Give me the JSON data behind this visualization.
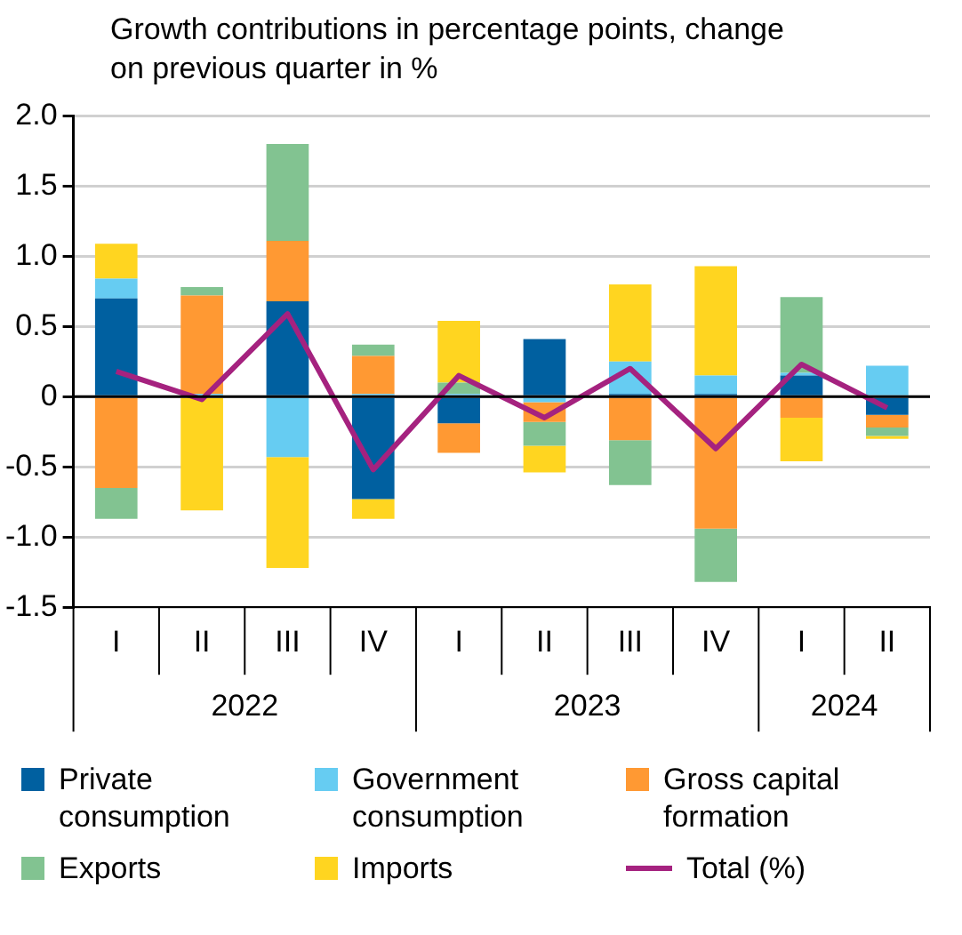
{
  "chart_data": {
    "type": "bar",
    "title": "Growth contributions in percentage points, change on previous quarter in %",
    "stacked": true,
    "categories": [
      "I",
      "II",
      "III",
      "IV",
      "I",
      "II",
      "III",
      "IV",
      "I",
      "II"
    ],
    "series": [
      {
        "name": "Private consumption",
        "color": "#0060a0",
        "values": [
          0.7,
          null,
          0.68,
          -0.73,
          -0.19,
          0.41,
          0.02,
          0.02,
          0.15,
          -0.13
        ]
      },
      {
        "name": "Government consumption",
        "color": "#66ccf2",
        "values": [
          0.14,
          0.02,
          -0.43,
          0.02,
          0.02,
          -0.04,
          0.23,
          0.13,
          0.02,
          0.22
        ]
      },
      {
        "name": "Gross capital formation",
        "color": "#ff9933",
        "values": [
          -0.65,
          0.7,
          0.43,
          0.27,
          -0.21,
          -0.14,
          -0.31,
          -0.94,
          -0.15,
          -0.09
        ]
      },
      {
        "name": "Exports",
        "color": "#82c391",
        "values": [
          -0.22,
          0.06,
          0.69,
          0.08,
          0.08,
          -0.17,
          -0.32,
          -0.38,
          0.54,
          -0.06
        ]
      },
      {
        "name": "Imports",
        "color": "#ffd520",
        "values": [
          0.25,
          -0.81,
          -0.79,
          -0.14,
          0.44,
          -0.19,
          0.55,
          0.78,
          -0.31,
          -0.02
        ]
      },
      {
        "name": "Total (%)",
        "type": "line",
        "color": "#a5227f",
        "marker": "none",
        "values": [
          0.18,
          -0.02,
          0.59,
          -0.52,
          0.15,
          -0.15,
          0.2,
          -0.37,
          0.23,
          -0.08
        ]
      }
    ],
    "ylim": [
      -1.5,
      2.0
    ],
    "yticks": [
      {
        "value": -1.5,
        "label": "-1.5"
      },
      {
        "value": -1.0,
        "label": "-1.0"
      },
      {
        "value": -0.5,
        "label": "-0.5"
      },
      0,
      {
        "value": 0.5,
        "label": "0.5"
      },
      {
        "value": 1.0,
        "label": "1.0"
      },
      {
        "value": 1.5,
        "label": "1.5"
      },
      {
        "value": 2.0,
        "label": "2.0"
      }
    ],
    "grid": "y",
    "legend": "bottom",
    "annotations": [
      "2022",
      "2023",
      "2024"
    ]
  }
}
